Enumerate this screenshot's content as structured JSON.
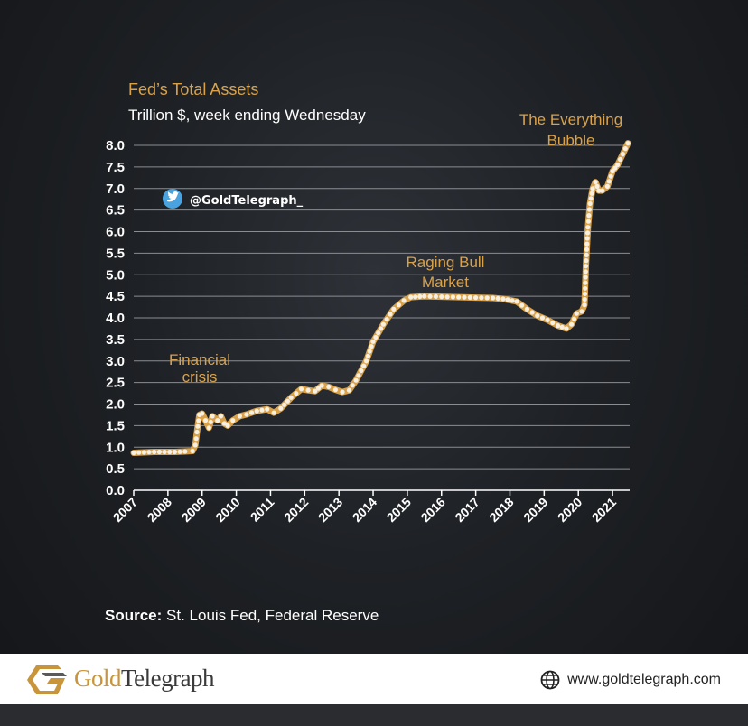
{
  "chart_data": {
    "type": "line",
    "title": "Fed’s Total Assets",
    "subtitle": "Trillion $, week ending Wednesday",
    "ylim": [
      0,
      8
    ],
    "yticks": [
      "0.0",
      "0.5",
      "1.0",
      "1.5",
      "2.0",
      "2.5",
      "3.0",
      "3.5",
      "4.0",
      "4.5",
      "5.0",
      "5.5",
      "6.0",
      "6.5",
      "7.0",
      "7.5",
      "8.0"
    ],
    "xlim": [
      2007,
      2021.5
    ],
    "xticks": [
      "2007",
      "2008",
      "2009",
      "2010",
      "2011",
      "2012",
      "2013",
      "2014",
      "2015",
      "2016",
      "2017",
      "2018",
      "2019",
      "2020",
      "2021"
    ],
    "grid": true,
    "series": [
      {
        "values": [
          [
            2007.0,
            0.87
          ],
          [
            2007.3,
            0.88
          ],
          [
            2007.6,
            0.89
          ],
          [
            2007.9,
            0.89
          ],
          [
            2008.2,
            0.89
          ],
          [
            2008.5,
            0.9
          ],
          [
            2008.72,
            0.91
          ],
          [
            2008.8,
            1.05
          ],
          [
            2008.85,
            1.35
          ],
          [
            2008.92,
            1.75
          ],
          [
            2009.0,
            1.78
          ],
          [
            2009.1,
            1.62
          ],
          [
            2009.2,
            1.45
          ],
          [
            2009.3,
            1.72
          ],
          [
            2009.45,
            1.62
          ],
          [
            2009.55,
            1.72
          ],
          [
            2009.65,
            1.55
          ],
          [
            2009.75,
            1.5
          ],
          [
            2009.9,
            1.62
          ],
          [
            2010.1,
            1.72
          ],
          [
            2010.3,
            1.76
          ],
          [
            2010.6,
            1.84
          ],
          [
            2010.9,
            1.88
          ],
          [
            2011.1,
            1.8
          ],
          [
            2011.3,
            1.9
          ],
          [
            2011.6,
            2.15
          ],
          [
            2011.9,
            2.35
          ],
          [
            2012.1,
            2.32
          ],
          [
            2012.3,
            2.3
          ],
          [
            2012.5,
            2.43
          ],
          [
            2012.7,
            2.4
          ],
          [
            2012.9,
            2.33
          ],
          [
            2013.1,
            2.28
          ],
          [
            2013.3,
            2.32
          ],
          [
            2013.5,
            2.55
          ],
          [
            2013.8,
            3.0
          ],
          [
            2014.0,
            3.45
          ],
          [
            2014.3,
            3.85
          ],
          [
            2014.6,
            4.2
          ],
          [
            2014.9,
            4.4
          ],
          [
            2015.1,
            4.48
          ],
          [
            2015.5,
            4.5
          ],
          [
            2016.0,
            4.49
          ],
          [
            2016.5,
            4.48
          ],
          [
            2017.0,
            4.47
          ],
          [
            2017.5,
            4.46
          ],
          [
            2017.8,
            4.44
          ],
          [
            2018.2,
            4.38
          ],
          [
            2018.5,
            4.2
          ],
          [
            2018.8,
            4.05
          ],
          [
            2019.1,
            3.95
          ],
          [
            2019.4,
            3.82
          ],
          [
            2019.65,
            3.75
          ],
          [
            2019.8,
            3.85
          ],
          [
            2019.95,
            4.1
          ],
          [
            2020.1,
            4.15
          ],
          [
            2020.18,
            4.3
          ],
          [
            2020.22,
            5.2
          ],
          [
            2020.28,
            6.1
          ],
          [
            2020.34,
            6.65
          ],
          [
            2020.42,
            7.0
          ],
          [
            2020.5,
            7.15
          ],
          [
            2020.6,
            6.95
          ],
          [
            2020.7,
            6.95
          ],
          [
            2020.85,
            7.05
          ],
          [
            2021.0,
            7.4
          ],
          [
            2021.15,
            7.55
          ],
          [
            2021.3,
            7.8
          ],
          [
            2021.45,
            8.05
          ]
        ]
      }
    ],
    "annotations": [
      {
        "lines": [
          "The Everything",
          "Bubble"
        ]
      },
      {
        "lines": [
          "Raging Bull",
          "Market"
        ]
      },
      {
        "lines": [
          "Financial",
          "crisis"
        ]
      }
    ],
    "colors": {
      "line": "#d9a24a",
      "marker": "#f6efe2",
      "grid": "#8a8d92"
    }
  },
  "social": {
    "icon": "twitter-icon",
    "handle": "@GoldTelegraph_"
  },
  "source": {
    "label": "Source:",
    "text": " St. Louis Fed, Federal Reserve"
  },
  "footer": {
    "brand_gold": "Gold",
    "brand_rest": "Telegraph",
    "website": "www.goldtelegraph.com"
  }
}
